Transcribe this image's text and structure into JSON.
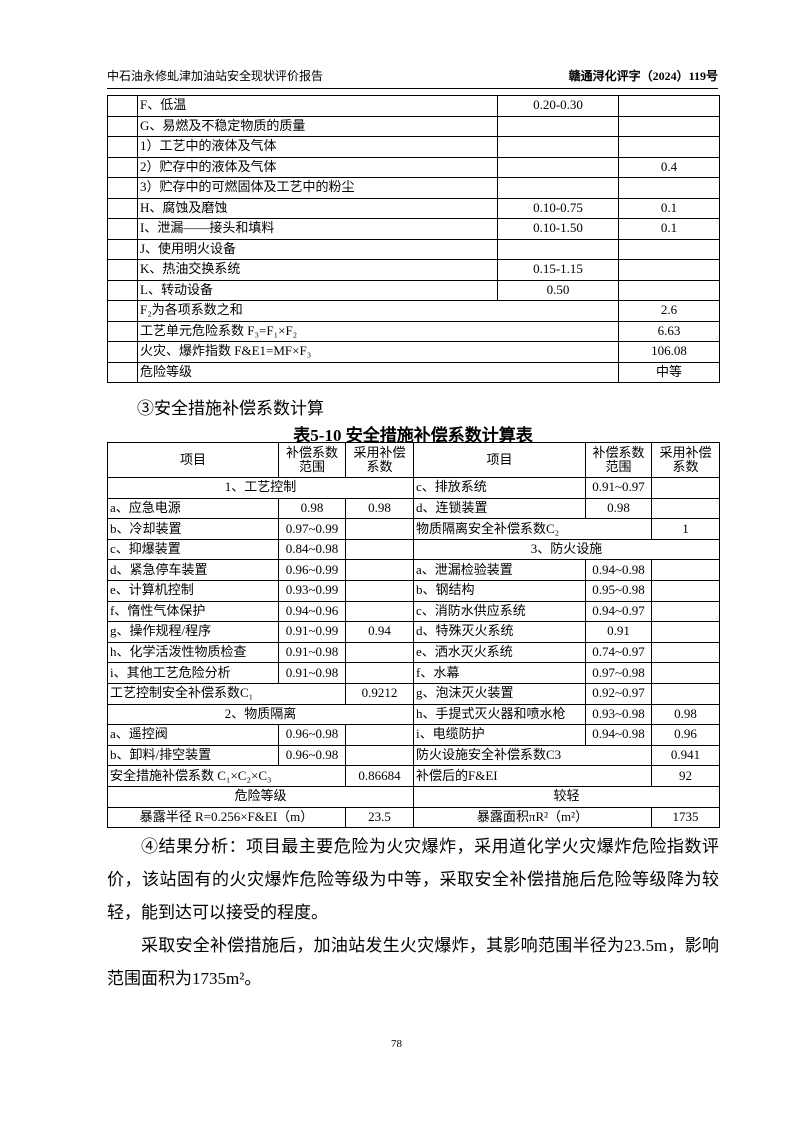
{
  "header": {
    "left": "中石油永修虬津加油站安全现状评价报告",
    "right": "赣通浔化评字（2024）119号"
  },
  "table1": {
    "rows": [
      [
        "F、低温",
        "0.20-0.30",
        null
      ],
      [
        "G、易燃及不稳定物质的质量",
        null,
        null
      ],
      [
        "1）工艺中的液体及气体",
        null,
        null
      ],
      [
        "2）贮存中的液体及气体",
        null,
        "0.4"
      ],
      [
        "3）贮存中的可燃固体及工艺中的粉尘",
        null,
        null
      ],
      [
        "H、腐蚀及磨蚀",
        "0.10-0.75",
        "0.1"
      ],
      [
        "I、泄漏——接头和填料",
        "0.10-1.50",
        "0.1"
      ],
      [
        "J、使用明火设备",
        null,
        null
      ],
      [
        "K、热油交换系统",
        "0.15-1.15",
        null
      ],
      [
        "L、转动设备",
        "0.50",
        null
      ],
      [
        "F₂为各项系数之和",
        "2.6"
      ],
      [
        "工艺单元危险系数 F₃=F₁×F₂",
        "6.63"
      ],
      [
        "火灾、爆炸指数 F&E1=MF×F₃",
        "106.08"
      ],
      [
        "危险等级",
        "中等"
      ]
    ]
  },
  "section3": "③安全措施补偿系数计算",
  "table2": {
    "title": "表5-10 安全措施补偿系数计算表",
    "header": [
      "项目",
      "补偿系数范围",
      "采用补偿系数",
      "项目",
      "补偿系数范围",
      "采用补偿系数"
    ],
    "rows": [
      [
        "1、工艺控制",
        "c、排放系统",
        "0.91~0.97",
        null
      ],
      [
        "a、应急电源",
        "0.98",
        "0.98",
        "d、连锁装置",
        "0.98",
        null
      ],
      [
        "b、冷却装置",
        "0.97~0.99",
        null,
        "物质隔离安全补偿系数C₂",
        "1"
      ],
      [
        "c、抑爆装置",
        "0.84~0.98",
        null,
        "3、防火设施"
      ],
      [
        "d、紧急停车装置",
        "0.96~0.99",
        null,
        "a、泄漏检验装置",
        "0.94~0.98",
        null
      ],
      [
        "e、计算机控制",
        "0.93~0.99",
        null,
        "b、钢结构",
        "0.95~0.98",
        null
      ],
      [
        "f、惰性气体保护",
        "0.94~0.96",
        null,
        "c、消防水供应系统",
        "0.94~0.97",
        null
      ],
      [
        "g、操作规程/程序",
        "0.91~0.99",
        "0.94",
        "d、特殊灭火系统",
        "0.91",
        null
      ],
      [
        "h、化学活泼性物质检查",
        "0.91~0.98",
        null,
        "e、洒水灭火系统",
        "0.74~0.97",
        null
      ],
      [
        "i、其他工艺危险分析",
        "0.91~0.98",
        null,
        "f、水幕",
        "0.97~0.98",
        null
      ],
      [
        "工艺控制安全补偿系数C₁",
        "0.9212",
        "g、泡沫灭火装置",
        "0.92~0.97",
        null
      ],
      [
        "2、物质隔离",
        "h、手提式灭火器和喷水枪",
        "0.93~0.98",
        "0.98"
      ],
      [
        "a、遥控阀",
        "0.96~0.98",
        null,
        "i、电缆防护",
        "0.94~0.98",
        "0.96"
      ],
      [
        "b、卸料/排空装置",
        "0.96~0.98",
        null,
        "防火设施安全补偿系数C3",
        "0.941"
      ],
      [
        "安全措施补偿系数 C₁×C₂×C₃",
        "0.86684",
        "补偿后的F&EI",
        "92"
      ],
      [
        "危险等级",
        "较轻"
      ],
      [
        "暴露半径 R=0.256×F&EI（m）",
        "23.5",
        "暴露面积πR²（m²）",
        "1735"
      ]
    ]
  },
  "paragraphs": [
    "④结果分析：项目最主要危险为火灾爆炸，采用道化学火灾爆炸危险指数评价，该站固有的火灾爆炸危险等级为中等，采取安全补偿措施后危险等级降为较轻，能到达可以接受的程度。",
    "采取安全补偿措施后，加油站发生火灾爆炸，其影响范围半径为23.5m，影响范围面积为1735m²。"
  ],
  "page_number": "78"
}
